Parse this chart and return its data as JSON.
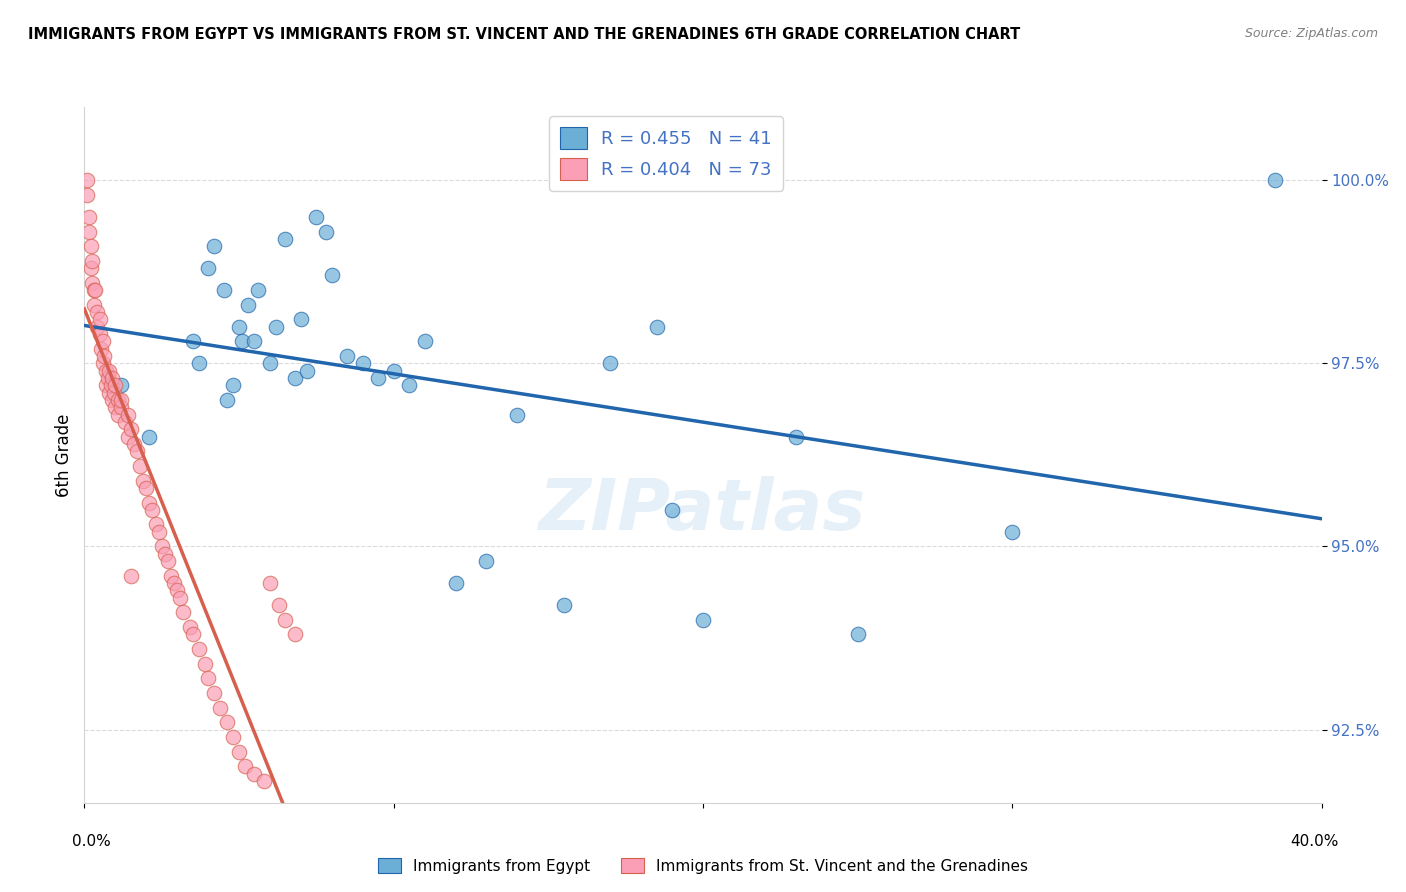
{
  "title": "IMMIGRANTS FROM EGYPT VS IMMIGRANTS FROM ST. VINCENT AND THE GRENADINES 6TH GRADE CORRELATION CHART",
  "source": "Source: ZipAtlas.com",
  "ylabel": "6th Grade",
  "y_ticks": [
    92.5,
    95.0,
    97.5,
    100.0
  ],
  "y_tick_labels": [
    "92.5%",
    "95.0%",
    "97.5%",
    "100.0%"
  ],
  "xlim": [
    0.0,
    40.0
  ],
  "ylim": [
    91.5,
    101.0
  ],
  "blue_R": 0.455,
  "blue_N": 41,
  "pink_R": 0.404,
  "pink_N": 73,
  "blue_color": "#6baed6",
  "pink_color": "#fa9fb5",
  "blue_line_color": "#2166ac",
  "pink_line_color": "#d6604d",
  "legend_label_blue": "Immigrants from Egypt",
  "legend_label_pink": "Immigrants from St. Vincent and the Grenadines",
  "blue_x": [
    1.2,
    2.1,
    3.5,
    3.7,
    4.0,
    4.2,
    4.5,
    4.6,
    4.8,
    5.0,
    5.1,
    5.3,
    5.5,
    5.6,
    6.0,
    6.2,
    6.5,
    6.8,
    7.0,
    7.2,
    7.5,
    7.8,
    8.0,
    8.5,
    9.0,
    9.5,
    10.0,
    10.5,
    11.0,
    12.0,
    13.0,
    14.0,
    15.5,
    17.0,
    18.5,
    19.0,
    20.0,
    23.0,
    25.0,
    30.0,
    38.5
  ],
  "blue_y": [
    97.2,
    96.5,
    97.8,
    97.5,
    98.8,
    99.1,
    98.5,
    97.0,
    97.2,
    98.0,
    97.8,
    98.3,
    97.8,
    98.5,
    97.5,
    98.0,
    99.2,
    97.3,
    98.1,
    97.4,
    99.5,
    99.3,
    98.7,
    97.6,
    97.5,
    97.3,
    97.4,
    97.2,
    97.8,
    94.5,
    94.8,
    96.8,
    94.2,
    97.5,
    98.0,
    95.5,
    94.0,
    96.5,
    93.8,
    95.2,
    100.0
  ],
  "pink_x": [
    0.1,
    0.1,
    0.15,
    0.15,
    0.2,
    0.2,
    0.25,
    0.25,
    0.3,
    0.3,
    0.35,
    0.4,
    0.4,
    0.5,
    0.5,
    0.55,
    0.6,
    0.6,
    0.65,
    0.7,
    0.7,
    0.75,
    0.8,
    0.8,
    0.85,
    0.9,
    0.9,
    0.95,
    1.0,
    1.0,
    1.1,
    1.1,
    1.2,
    1.2,
    1.3,
    1.4,
    1.4,
    1.5,
    1.6,
    1.7,
    1.8,
    1.9,
    2.0,
    2.1,
    2.2,
    2.3,
    2.4,
    2.5,
    2.6,
    2.7,
    2.8,
    2.9,
    3.0,
    3.1,
    3.2,
    3.4,
    3.5,
    3.7,
    3.9,
    4.0,
    4.2,
    4.4,
    4.6,
    4.8,
    5.0,
    5.2,
    5.5,
    5.8,
    6.0,
    6.3,
    6.5,
    6.8,
    1.5
  ],
  "pink_y": [
    100.0,
    99.8,
    99.5,
    99.3,
    99.1,
    98.8,
    98.9,
    98.6,
    98.5,
    98.3,
    98.5,
    98.2,
    98.0,
    98.1,
    97.9,
    97.7,
    97.8,
    97.5,
    97.6,
    97.4,
    97.2,
    97.3,
    97.1,
    97.4,
    97.2,
    97.0,
    97.3,
    97.1,
    97.2,
    96.9,
    97.0,
    96.8,
    96.9,
    97.0,
    96.7,
    96.5,
    96.8,
    96.6,
    96.4,
    96.3,
    96.1,
    95.9,
    95.8,
    95.6,
    95.5,
    95.3,
    95.2,
    95.0,
    94.9,
    94.8,
    94.6,
    94.5,
    94.4,
    94.3,
    94.1,
    93.9,
    93.8,
    93.6,
    93.4,
    93.2,
    93.0,
    92.8,
    92.6,
    92.4,
    92.2,
    92.0,
    91.9,
    91.8,
    94.5,
    94.2,
    94.0,
    93.8,
    94.6
  ]
}
